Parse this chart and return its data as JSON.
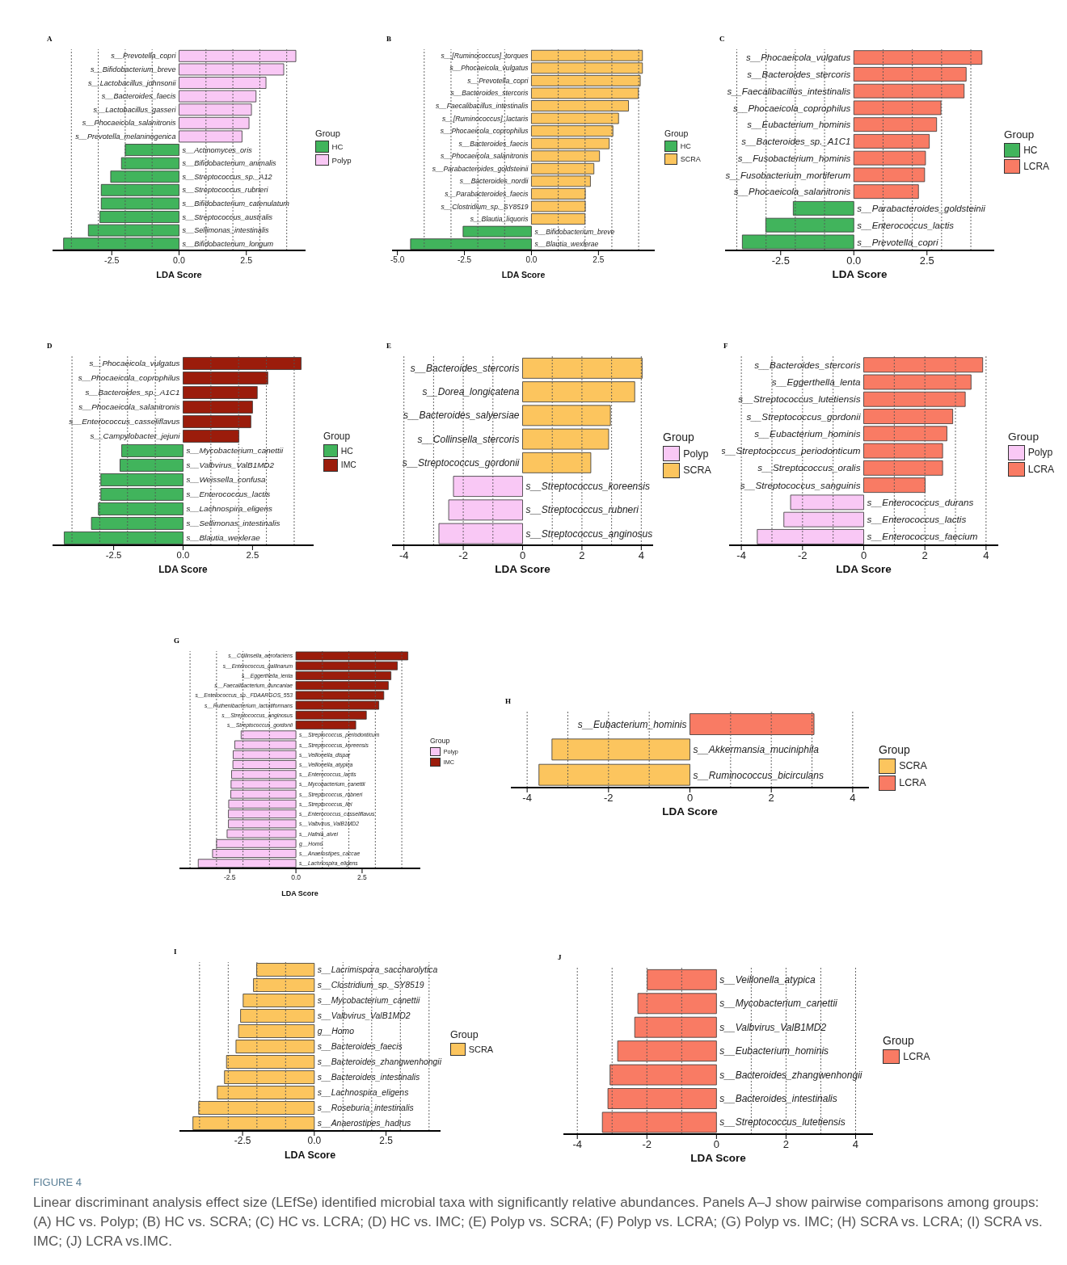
{
  "chart_data": [
    {
      "type": "bar",
      "orientation": "horizontal",
      "stacked": true,
      "title": "A",
      "xlabel": "LDA Score",
      "legend_title": "Group",
      "legend": "right",
      "categories": [
        "s__Prevotella_copri",
        "s__Bifidobacterium_breve",
        "s__Lactobacillus_johnsonii",
        "s__Bacteroides_faecis",
        "s__Lactobacillus_gasseri",
        "s__Phocaeicola_salanitronis",
        "s__Prevotella_melaninogenica",
        "s__Actinomyces_oris",
        "s__Bifidobacterium_animalis",
        "s__Streptococcus_sp._A12",
        "s__Streptococcus_rubneri",
        "s__Bifidobacterium_catenulatum",
        "s__Streptococcus_australis",
        "s__Sellimonas_intestinalis",
        "s__Bifidobacterium_longum"
      ],
      "series": [
        {
          "name": "HC",
          "color": "#41b45c",
          "values": [
            null,
            null,
            null,
            null,
            null,
            null,
            null,
            -2.0,
            -2.14,
            -2.54,
            -2.89,
            -2.89,
            -2.94,
            -3.37,
            -4.29
          ]
        },
        {
          "name": "Polyp",
          "color": "#f9c8f5",
          "values": [
            4.34,
            3.89,
            3.23,
            2.86,
            2.69,
            2.6,
            2.34,
            null,
            null,
            null,
            null,
            null,
            null,
            null,
            null
          ]
        }
      ],
      "xlim": [
        -4.7,
        4.7
      ],
      "xticks": [
        {
          "value": -2.5,
          "label": "-2.5"
        },
        {
          "value": 0,
          "label": "0.0"
        },
        {
          "value": 2.5,
          "label": "2.5"
        }
      ],
      "ref_lines": [
        {
          "axis": "x",
          "value": -4,
          "line_style": "dotted",
          "color": "#555555"
        },
        {
          "axis": "x",
          "value": -3,
          "line_style": "dotted",
          "color": "#555555"
        },
        {
          "axis": "x",
          "value": -2,
          "line_style": "dotted",
          "color": "#555555"
        },
        {
          "axis": "x",
          "value": -1,
          "line_style": "dotted",
          "color": "#555555"
        },
        {
          "axis": "x",
          "value": 1,
          "line_style": "dotted",
          "color": "#555555"
        },
        {
          "axis": "x",
          "value": 2,
          "line_style": "dotted",
          "color": "#555555"
        },
        {
          "axis": "x",
          "value": 3,
          "line_style": "dotted",
          "color": "#555555"
        },
        {
          "axis": "x",
          "value": 4,
          "line_style": "dotted",
          "color": "#555555"
        }
      ]
    },
    {
      "type": "bar",
      "orientation": "horizontal",
      "stacked": true,
      "title": "B",
      "xlabel": "LDA Score",
      "legend_title": "Group",
      "legend": "right",
      "categories": [
        "s__[Ruminococcus]_torques",
        "s__Phocaeicola_vulgatus",
        "s__Prevotella_copri",
        "s__Bacteroides_stercoris",
        "s__Faecalibacillus_intestinalis",
        "s__[Ruminococcus]_lactaris",
        "s__Phocaeicola_coprophilus",
        "s__Bacteroides_faecis",
        "s__Phocaeicola_salanitronis",
        "s__Parabacteroides_goldsteinii",
        "s__Bacteroides_nordii",
        "s__Parabacteroides_faecis",
        "s__Clostridium_sp._SY8519",
        "s__Blautia_liquoris",
        "s__Bifidobacterium_breve",
        "s__Blautia_wexlerae"
      ],
      "series": [
        {
          "name": "HC",
          "color": "#41b45c",
          "values": [
            null,
            null,
            null,
            null,
            null,
            null,
            null,
            null,
            null,
            null,
            null,
            null,
            null,
            null,
            -2.55,
            -4.51
          ]
        },
        {
          "name": "SCRA",
          "color": "#fcc55e",
          "values": [
            4.14,
            4.14,
            4.06,
            3.99,
            3.62,
            3.25,
            3.04,
            2.9,
            2.54,
            2.33,
            2.2,
            2.01,
            2.01,
            2.0,
            null,
            null
          ]
        }
      ],
      "xlim": [
        -5.2,
        4.6
      ],
      "xticks": [
        {
          "value": -5,
          "label": "-5.0"
        },
        {
          "value": -2.5,
          "label": "-2.5"
        },
        {
          "value": 0,
          "label": "0.0"
        },
        {
          "value": 2.5,
          "label": "2.5"
        }
      ],
      "ref_lines": [
        {
          "axis": "x",
          "value": -4,
          "line_style": "dotted",
          "color": "#555555"
        },
        {
          "axis": "x",
          "value": -3,
          "line_style": "dotted",
          "color": "#555555"
        },
        {
          "axis": "x",
          "value": -2,
          "line_style": "dotted",
          "color": "#555555"
        },
        {
          "axis": "x",
          "value": -1,
          "line_style": "dotted",
          "color": "#555555"
        },
        {
          "axis": "x",
          "value": 1,
          "line_style": "dotted",
          "color": "#555555"
        },
        {
          "axis": "x",
          "value": 2,
          "line_style": "dotted",
          "color": "#555555"
        },
        {
          "axis": "x",
          "value": 3,
          "line_style": "dotted",
          "color": "#555555"
        },
        {
          "axis": "x",
          "value": 4,
          "line_style": "dotted",
          "color": "#555555"
        }
      ]
    },
    {
      "type": "bar",
      "orientation": "horizontal",
      "stacked": true,
      "title": "C",
      "xlabel": "LDA Score",
      "legend_title": "Group",
      "legend": "right",
      "categories": [
        "s__Phocaeicola_vulgatus",
        "s__Bacteroides_stercoris",
        "s__Faecalibacillus_intestinalis",
        "s__Phocaeicola_coprophilus",
        "s__Eubacterium_hominis",
        "s__Bacteroides_sp._A1C1",
        "s__Fusobacterium_hominis",
        "s__Fusobacterium_mortiferum",
        "s__Phocaeicola_salanitronis",
        "s__Parabacteroides_goldsteinii",
        "s__Enterococcus_lactis",
        "s__Prevotella_copri"
      ],
      "series": [
        {
          "name": "HC",
          "color": "#41b45c",
          "values": [
            null,
            null,
            null,
            null,
            null,
            null,
            null,
            null,
            null,
            -2.07,
            -3.01,
            -3.81
          ]
        },
        {
          "name": "LCRA",
          "color": "#f97b64",
          "values": [
            4.38,
            3.84,
            3.77,
            2.98,
            2.83,
            2.58,
            2.45,
            2.42,
            2.21,
            null,
            null,
            null
          ]
        }
      ],
      "xlim": [
        -4.4,
        4.8
      ],
      "xticks": [
        {
          "value": -2.5,
          "label": "-2.5"
        },
        {
          "value": 0,
          "label": "0.0"
        },
        {
          "value": 2.5,
          "label": "2.5"
        }
      ],
      "ref_lines": [
        {
          "axis": "x",
          "value": -4,
          "line_style": "dotted",
          "color": "#555555"
        },
        {
          "axis": "x",
          "value": -3,
          "line_style": "dotted",
          "color": "#555555"
        },
        {
          "axis": "x",
          "value": -2,
          "line_style": "dotted",
          "color": "#555555"
        },
        {
          "axis": "x",
          "value": -1,
          "line_style": "dotted",
          "color": "#555555"
        },
        {
          "axis": "x",
          "value": 1,
          "line_style": "dotted",
          "color": "#555555"
        },
        {
          "axis": "x",
          "value": 2,
          "line_style": "dotted",
          "color": "#555555"
        },
        {
          "axis": "x",
          "value": 3,
          "line_style": "dotted",
          "color": "#555555"
        },
        {
          "axis": "x",
          "value": 4,
          "line_style": "dotted",
          "color": "#555555"
        }
      ]
    },
    {
      "type": "bar",
      "orientation": "horizontal",
      "stacked": true,
      "title": "D",
      "xlabel": "LDA Score",
      "legend_title": "Group",
      "legend": "right",
      "categories": [
        "s__Phocaeicola_vulgatus",
        "s__Phocaeicola_coprophilus",
        "s__Bacteroides_sp._A1C1",
        "s__Phocaeicola_salanitronis",
        "s__Enterococcus_casseliflavus",
        "s__Campylobacter_jejuni",
        "s__Mycobacterium_canettii",
        "s__Valbvirus_ValB1MD2",
        "s__Weissella_confusa",
        "s__Enterococcus_lactis",
        "s__Lachnospira_eligens",
        "s__Sellimonas_intestinalis",
        "s__Blautia_wexlerae"
      ],
      "series": [
        {
          "name": "HC",
          "color": "#41b45c",
          "values": [
            null,
            null,
            null,
            null,
            null,
            null,
            -2.21,
            -2.27,
            -2.96,
            -2.96,
            -3.05,
            -3.3,
            -4.28
          ]
        },
        {
          "name": "IMC",
          "color": "#9b1c0b",
          "values": [
            4.25,
            3.05,
            2.67,
            2.5,
            2.44,
            2.01,
            null,
            null,
            null,
            null,
            null,
            null,
            null
          ]
        }
      ],
      "xlim": [
        -4.7,
        4.7
      ],
      "xticks": [
        {
          "value": -2.5,
          "label": "-2.5"
        },
        {
          "value": 0,
          "label": "0.0"
        },
        {
          "value": 2.5,
          "label": "2.5"
        }
      ],
      "ref_lines": [
        {
          "axis": "x",
          "value": -4,
          "line_style": "dotted",
          "color": "#555555"
        },
        {
          "axis": "x",
          "value": -3,
          "line_style": "dotted",
          "color": "#555555"
        },
        {
          "axis": "x",
          "value": -2,
          "line_style": "dotted",
          "color": "#555555"
        },
        {
          "axis": "x",
          "value": -1,
          "line_style": "dotted",
          "color": "#555555"
        },
        {
          "axis": "x",
          "value": 1,
          "line_style": "dotted",
          "color": "#555555"
        },
        {
          "axis": "x",
          "value": 2,
          "line_style": "dotted",
          "color": "#555555"
        },
        {
          "axis": "x",
          "value": 3,
          "line_style": "dotted",
          "color": "#555555"
        },
        {
          "axis": "x",
          "value": 4,
          "line_style": "dotted",
          "color": "#555555"
        }
      ]
    },
    {
      "type": "bar",
      "orientation": "horizontal",
      "stacked": true,
      "title": "E",
      "xlabel": "LDA Score",
      "legend_title": "Group",
      "legend": "right",
      "categories": [
        "s__Bacteroides_stercoris",
        "s__Dorea_longicatena",
        "s__Bacteroides_salyersiae",
        "s__Collinsella_stercoris",
        "s__Streptococcus_gordonii",
        "s__Streptococcus_koreensis",
        "s__Streptococcus_rubneri",
        "s__Streptococcus_anginosus"
      ],
      "series": [
        {
          "name": "Polyp",
          "color": "#f9c8f5",
          "values": [
            null,
            null,
            null,
            null,
            null,
            -2.33,
            -2.49,
            -2.82
          ]
        },
        {
          "name": "SCRA",
          "color": "#fcc55e",
          "values": [
            4.03,
            3.78,
            2.96,
            2.9,
            2.3,
            null,
            null,
            null
          ]
        }
      ],
      "xlim": [
        -4.4,
        4.4
      ],
      "xticks": [
        -4,
        -2,
        0,
        2,
        4
      ],
      "ref_lines": [
        {
          "axis": "x",
          "value": -4,
          "line_style": "dotted",
          "color": "#555555"
        },
        {
          "axis": "x",
          "value": -3,
          "line_style": "dotted",
          "color": "#555555"
        },
        {
          "axis": "x",
          "value": -2,
          "line_style": "dotted",
          "color": "#555555"
        },
        {
          "axis": "x",
          "value": -1,
          "line_style": "dotted",
          "color": "#555555"
        },
        {
          "axis": "x",
          "value": 1,
          "line_style": "dotted",
          "color": "#555555"
        },
        {
          "axis": "x",
          "value": 2,
          "line_style": "dotted",
          "color": "#555555"
        },
        {
          "axis": "x",
          "value": 3,
          "line_style": "dotted",
          "color": "#555555"
        },
        {
          "axis": "x",
          "value": 4,
          "line_style": "dotted",
          "color": "#555555"
        }
      ]
    },
    {
      "type": "bar",
      "orientation": "horizontal",
      "stacked": true,
      "title": "F",
      "xlabel": "LDA Score",
      "legend_title": "Group",
      "legend": "right",
      "categories": [
        "s__Bacteroides_stercoris",
        "s__Eggerthella_lenta",
        "s__Streptococcus_lutetiensis",
        "s__Streptococcus_gordonii",
        "s__Eubacterium_hominis",
        "s__Streptococcus_periodonticum",
        "s__Streptococcus_oralis",
        "s__Streptococcus_sanguinis",
        "s__Enterococcus_durans",
        "s__Enterococcus_lactis",
        "s__Enterococcus_faecium"
      ],
      "series": [
        {
          "name": "Polyp",
          "color": "#f9c8f5",
          "values": [
            null,
            null,
            null,
            null,
            null,
            null,
            null,
            null,
            -2.39,
            -2.61,
            -3.48
          ]
        },
        {
          "name": "LCRA",
          "color": "#f97b64",
          "values": [
            3.89,
            3.51,
            3.32,
            2.91,
            2.72,
            2.58,
            2.58,
            2.01,
            null,
            null,
            null
          ]
        }
      ],
      "xlim": [
        -4.4,
        4.4
      ],
      "xticks": [
        -4,
        -2,
        0,
        2,
        4
      ],
      "ref_lines": [
        {
          "axis": "x",
          "value": -4,
          "line_style": "dotted",
          "color": "#555555"
        },
        {
          "axis": "x",
          "value": -3,
          "line_style": "dotted",
          "color": "#555555"
        },
        {
          "axis": "x",
          "value": -2,
          "line_style": "dotted",
          "color": "#555555"
        },
        {
          "axis": "x",
          "value": -1,
          "line_style": "dotted",
          "color": "#555555"
        },
        {
          "axis": "x",
          "value": 1,
          "line_style": "dotted",
          "color": "#555555"
        },
        {
          "axis": "x",
          "value": 2,
          "line_style": "dotted",
          "color": "#555555"
        },
        {
          "axis": "x",
          "value": 3,
          "line_style": "dotted",
          "color": "#555555"
        },
        {
          "axis": "x",
          "value": 4,
          "line_style": "dotted",
          "color": "#555555"
        }
      ]
    },
    {
      "type": "bar",
      "orientation": "horizontal",
      "stacked": true,
      "title": "G",
      "xlabel": "LDA Score",
      "legend_title": "Group",
      "legend": "right",
      "categories": [
        "s__Collinsella_aerofaciens",
        "s__Enterococcus_gallinarum",
        "s__Eggerthella_lenta",
        "s__Faecalibacterium_duncaniae",
        "s__Enterococcus_sp._FDAARGOS_553",
        "s__Ruthenibacterium_lactatiformans",
        "s__Streptococcus_anginosus",
        "s__Streptococcus_gordonii",
        "s__Streptococcus_periodonticum",
        "s__Streptococcus_koreensis",
        "s__Veillonella_dispar",
        "s__Veillonella_atypica",
        "s__Enterococcus_lactis",
        "s__Mycobacterium_canettii",
        "s__Streptococcus_rubneri",
        "s__Streptococcus_ilei",
        "s__Enterococcus_casseliflavus",
        "s__Valbvirus_ValB1MD2",
        "s__Hafnia_alvei",
        "g__Homo",
        "s__Anaerostipes_caccae",
        "s__Lachnospira_eligens"
      ],
      "series": [
        {
          "name": "Polyp",
          "color": "#f9c8f5",
          "values": [
            null,
            null,
            null,
            null,
            null,
            null,
            null,
            null,
            -2.07,
            -2.31,
            -2.37,
            -2.38,
            -2.43,
            -2.45,
            -2.46,
            -2.54,
            -2.55,
            -2.55,
            -2.6,
            -3.0,
            -3.15,
            -3.69
          ]
        },
        {
          "name": "IMC",
          "color": "#9b1c0b",
          "values": [
            4.23,
            3.83,
            3.59,
            3.49,
            3.32,
            3.13,
            2.66,
            2.26,
            null,
            null,
            null,
            null,
            null,
            null,
            null,
            null,
            null,
            null,
            null,
            null,
            null,
            null
          ]
        }
      ],
      "xlim": [
        -4.4,
        4.7
      ],
      "xticks": [
        {
          "value": -2.5,
          "label": "-2.5"
        },
        {
          "value": 0,
          "label": "0.0"
        },
        {
          "value": 2.5,
          "label": "2.5"
        }
      ],
      "ref_lines": [
        {
          "axis": "x",
          "value": -4,
          "line_style": "dotted",
          "color": "#555555"
        },
        {
          "axis": "x",
          "value": -3,
          "line_style": "dotted",
          "color": "#555555"
        },
        {
          "axis": "x",
          "value": -2,
          "line_style": "dotted",
          "color": "#555555"
        },
        {
          "axis": "x",
          "value": -1,
          "line_style": "dotted",
          "color": "#555555"
        },
        {
          "axis": "x",
          "value": 1,
          "line_style": "dotted",
          "color": "#555555"
        },
        {
          "axis": "x",
          "value": 2,
          "line_style": "dotted",
          "color": "#555555"
        },
        {
          "axis": "x",
          "value": 3,
          "line_style": "dotted",
          "color": "#555555"
        },
        {
          "axis": "x",
          "value": 4,
          "line_style": "dotted",
          "color": "#555555"
        }
      ]
    },
    {
      "type": "bar",
      "orientation": "horizontal",
      "stacked": true,
      "title": "H",
      "xlabel": "LDA Score",
      "legend_title": "Group",
      "legend": "right",
      "categories": [
        "s__Eubacterium_hominis",
        "s__Akkermansia_muciniphila",
        "s__Ruminococcus_bicirculans"
      ],
      "series": [
        {
          "name": "SCRA",
          "color": "#fcc55e",
          "values": [
            null,
            -3.39,
            -3.71
          ]
        },
        {
          "name": "LCRA",
          "color": "#f97b64",
          "values": [
            3.05,
            null,
            null
          ]
        }
      ],
      "xlim": [
        -4.4,
        4.4
      ],
      "xticks": [
        -4,
        -2,
        0,
        2,
        4
      ],
      "ref_lines": [
        {
          "axis": "x",
          "value": -4,
          "line_style": "dotted",
          "color": "#555555"
        },
        {
          "axis": "x",
          "value": -3,
          "line_style": "dotted",
          "color": "#555555"
        },
        {
          "axis": "x",
          "value": -2,
          "line_style": "dotted",
          "color": "#555555"
        },
        {
          "axis": "x",
          "value": -1,
          "line_style": "dotted",
          "color": "#555555"
        },
        {
          "axis": "x",
          "value": 1,
          "line_style": "dotted",
          "color": "#555555"
        },
        {
          "axis": "x",
          "value": 2,
          "line_style": "dotted",
          "color": "#555555"
        },
        {
          "axis": "x",
          "value": 3,
          "line_style": "dotted",
          "color": "#555555"
        },
        {
          "axis": "x",
          "value": 4,
          "line_style": "dotted",
          "color": "#555555"
        }
      ]
    },
    {
      "type": "bar",
      "orientation": "horizontal",
      "stacked": true,
      "title": "I",
      "xlabel": "LDA Score",
      "legend_title": "Group",
      "legend": "right",
      "categories": [
        "s__Lacrimispora_saccharolytica",
        "s__Clostridium_sp._SY8519",
        "s__Mycobacterium_canettii",
        "s__Valbvirus_ValB1MD2",
        "g__Homo",
        "s__Bacteroides_faecis",
        "s__Bacteroides_zhangwenhongii",
        "s__Bacteroides_intestinalis",
        "s__Lachnospira_eligens",
        "s__Roseburia_intestinalis",
        "s__Anaerostipes_hadrus"
      ],
      "series": [
        {
          "name": "SCRA",
          "color": "#fcc55e",
          "values": [
            -2.01,
            -2.12,
            -2.48,
            -2.57,
            -2.64,
            -2.73,
            -3.06,
            -3.13,
            -3.38,
            -4.03,
            -4.23
          ]
        }
      ],
      "xlim": [
        -4.7,
        4.4
      ],
      "xticks": [
        {
          "value": -2.5,
          "label": "-2.5"
        },
        {
          "value": 0,
          "label": "0.0"
        },
        {
          "value": 2.5,
          "label": "2.5"
        }
      ],
      "ref_lines": [
        {
          "axis": "x",
          "value": -4,
          "line_style": "dotted",
          "color": "#555555"
        },
        {
          "axis": "x",
          "value": -3,
          "line_style": "dotted",
          "color": "#555555"
        },
        {
          "axis": "x",
          "value": -2,
          "line_style": "dotted",
          "color": "#555555"
        },
        {
          "axis": "x",
          "value": -1,
          "line_style": "dotted",
          "color": "#555555"
        },
        {
          "axis": "x",
          "value": 1,
          "line_style": "dotted",
          "color": "#555555"
        },
        {
          "axis": "x",
          "value": 2,
          "line_style": "dotted",
          "color": "#555555"
        },
        {
          "axis": "x",
          "value": 3,
          "line_style": "dotted",
          "color": "#555555"
        },
        {
          "axis": "x",
          "value": 4,
          "line_style": "dotted",
          "color": "#555555"
        }
      ]
    },
    {
      "type": "bar",
      "orientation": "horizontal",
      "stacked": true,
      "title": "J",
      "xlabel": "LDA Score",
      "legend_title": "Group",
      "legend": "right",
      "categories": [
        "s__Veillonella_atypica",
        "s__Mycobacterium_canettii",
        "s__Valbvirus_ValB1MD2",
        "s__Eubacterium_hominis",
        "s__Bacteroides_zhangwenhongii",
        "s__Bacteroides_intestinalis",
        "s__Streptococcus_lutetiensis"
      ],
      "series": [
        {
          "name": "LCRA",
          "color": "#f97b64",
          "values": [
            -1.99,
            -2.26,
            -2.35,
            -2.84,
            -3.06,
            -3.12,
            -3.28
          ]
        }
      ],
      "xlim": [
        -4.4,
        4.5
      ],
      "xticks": [
        -4,
        -2,
        0,
        2,
        4
      ],
      "ref_lines": [
        {
          "axis": "x",
          "value": -4,
          "line_style": "dotted",
          "color": "#555555"
        },
        {
          "axis": "x",
          "value": -3,
          "line_style": "dotted",
          "color": "#555555"
        },
        {
          "axis": "x",
          "value": -2,
          "line_style": "dotted",
          "color": "#555555"
        },
        {
          "axis": "x",
          "value": -1,
          "line_style": "dotted",
          "color": "#555555"
        },
        {
          "axis": "x",
          "value": 1,
          "line_style": "dotted",
          "color": "#555555"
        },
        {
          "axis": "x",
          "value": 2,
          "line_style": "dotted",
          "color": "#555555"
        },
        {
          "axis": "x",
          "value": 3,
          "line_style": "dotted",
          "color": "#555555"
        },
        {
          "axis": "x",
          "value": 4,
          "line_style": "dotted",
          "color": "#555555"
        }
      ],
      "annotations": [
        "FIGURE 4",
        "Linear discriminant analysis effect size (LEfSe) identified microbial taxa with significantly relative abundances. Panels A–J show pairwise comparisons among groups: (A) HC vs. Polyp; (B) HC vs. SCRA; (C) HC vs. LCRA; (D) HC vs. IMC; (E) Polyp vs. SCRA; (F) Polyp vs. LCRA; (G) Polyp vs. IMC; (H) SCRA vs. LCRA; (I) SCRA vs. IMC; (J) LCRA vs.IMC."
      ]
    }
  ]
}
